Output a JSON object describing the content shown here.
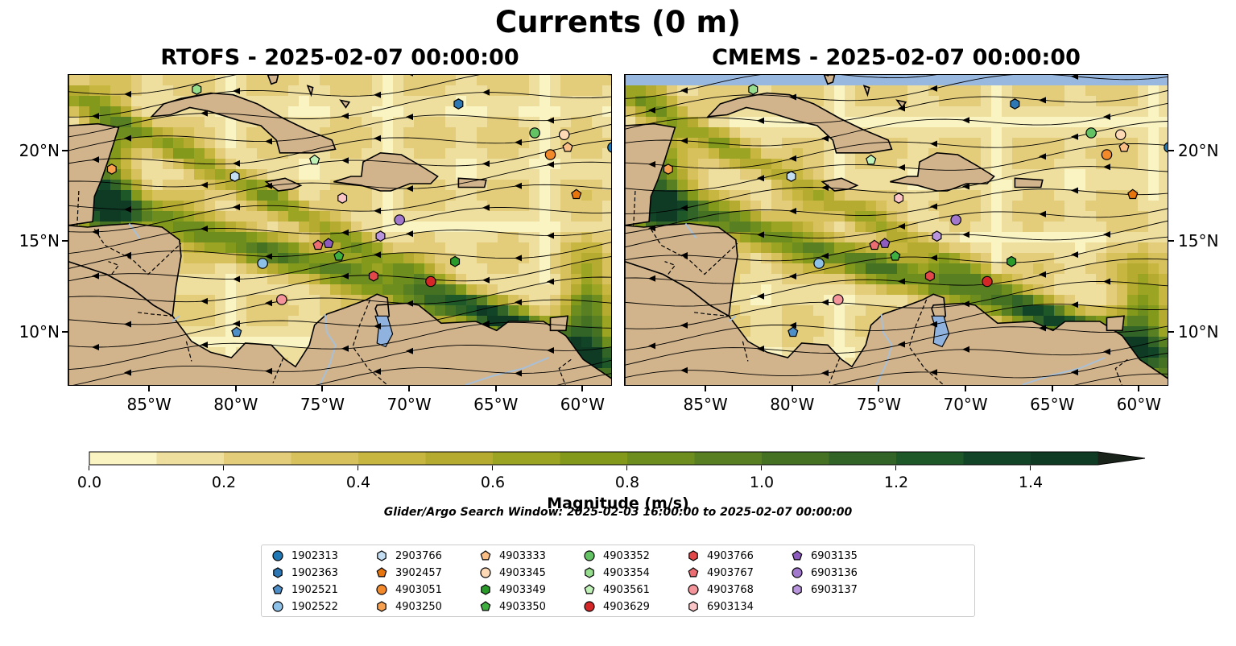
{
  "figure": {
    "suptitle": "Currents (0 m)",
    "panels": [
      {
        "title": "RTOFS - 2025-02-07 00:00:00"
      },
      {
        "title": "CMEMS - 2025-02-07 00:00:00"
      }
    ],
    "lon_ticks": [
      "85°W",
      "80°W",
      "75°W",
      "70°W",
      "65°W",
      "60°W"
    ],
    "lat_ticks": [
      "20°N",
      "15°N",
      "10°N"
    ],
    "extent": {
      "lon": [
        -89.7,
        -58.3
      ],
      "lat": [
        7.0,
        24.2
      ]
    },
    "colors": {
      "land": "#d2b48c",
      "missing": "#99b8e0",
      "lake": "#8fb3de",
      "rivers": "#a8bfd8"
    }
  },
  "colorbar": {
    "label": "Magnitude (m/s)",
    "ticks": [
      "0.0",
      "0.2",
      "0.4",
      "0.6",
      "0.8",
      "1.0",
      "1.2",
      "1.4"
    ],
    "range": [
      0.0,
      1.5
    ],
    "extend": "max",
    "colors": [
      "#faf3c2",
      "#efdf9e",
      "#e3cc7a",
      "#d7c15c",
      "#c7b740",
      "#b4ab30",
      "#9ba423",
      "#82991b",
      "#6d8d1e",
      "#587f22",
      "#457123",
      "#316426",
      "#1e5828",
      "#124528",
      "#0f3b25",
      "#132f20",
      "#192319"
    ]
  },
  "search_window": "Glider/Argo Search Window: 2025-02-03 16:00:00 to 2025-02-07 00:00:00",
  "legend": [
    {
      "label": "1902313",
      "marker": "circle",
      "color": "#1f77b4"
    },
    {
      "label": "1902363",
      "marker": "hexagon",
      "color": "#2d78b4"
    },
    {
      "label": "1902521",
      "marker": "pentagon",
      "color": "#4f8fc7"
    },
    {
      "label": "1902522",
      "marker": "circle",
      "color": "#8ec1e8"
    },
    {
      "label": "2903766",
      "marker": "hexagon",
      "color": "#c3def2"
    },
    {
      "label": "3902457",
      "marker": "pentagon",
      "color": "#e6750e"
    },
    {
      "label": "4903051",
      "marker": "circle",
      "color": "#f28a2b"
    },
    {
      "label": "4903250",
      "marker": "hexagon",
      "color": "#f7a150"
    },
    {
      "label": "4903333",
      "marker": "pentagon",
      "color": "#fbbf86"
    },
    {
      "label": "4903345",
      "marker": "circle",
      "color": "#fdd9b5"
    },
    {
      "label": "4903349",
      "marker": "hexagon",
      "color": "#2a9a2a"
    },
    {
      "label": "4903350",
      "marker": "pentagon",
      "color": "#3fb03f"
    },
    {
      "label": "4903352",
      "marker": "circle",
      "color": "#63c263"
    },
    {
      "label": "4903354",
      "marker": "hexagon",
      "color": "#96dd8e"
    },
    {
      "label": "4903561",
      "marker": "pentagon",
      "color": "#c0f2b8"
    },
    {
      "label": "4903629",
      "marker": "circle",
      "color": "#d62728"
    },
    {
      "label": "4903766",
      "marker": "hexagon",
      "color": "#e2474a"
    },
    {
      "label": "4903767",
      "marker": "pentagon",
      "color": "#ec6e73"
    },
    {
      "label": "4903768",
      "marker": "circle",
      "color": "#f3959a"
    },
    {
      "label": "6903134",
      "marker": "hexagon",
      "color": "#fbc4c6"
    },
    {
      "label": "6903135",
      "marker": "pentagon",
      "color": "#8e5cbf"
    },
    {
      "label": "6903136",
      "marker": "circle",
      "color": "#a178cc"
    },
    {
      "label": "6903137",
      "marker": "hexagon",
      "color": "#b995dd"
    }
  ],
  "floats": [
    {
      "id": "1902313",
      "lon": -58.3,
      "lat": 20.2
    },
    {
      "id": "1902363",
      "lon": -67.2,
      "lat": 22.6
    },
    {
      "id": "1902522",
      "lon": -78.5,
      "lat": 13.8
    },
    {
      "id": "2903766",
      "lon": -80.1,
      "lat": 18.6
    },
    {
      "id": "1902521",
      "lon": -80.0,
      "lat": 10.0
    },
    {
      "id": "3902457",
      "lon": -60.4,
      "lat": 17.6
    },
    {
      "id": "4903051",
      "lon": -61.9,
      "lat": 19.8
    },
    {
      "id": "4903250",
      "lon": -87.2,
      "lat": 19.0
    },
    {
      "id": "4903333",
      "lon": -60.9,
      "lat": 20.2
    },
    {
      "id": "4903345",
      "lon": -61.1,
      "lat": 20.9
    },
    {
      "id": "4903349",
      "lon": -67.4,
      "lat": 13.9
    },
    {
      "id": "4903350",
      "lon": -74.1,
      "lat": 14.2
    },
    {
      "id": "4903352",
      "lon": -62.8,
      "lat": 21.0
    },
    {
      "id": "4903354",
      "lon": -82.3,
      "lat": 23.4
    },
    {
      "id": "4903561",
      "lon": -75.5,
      "lat": 19.5
    },
    {
      "id": "4903629",
      "lon": -68.8,
      "lat": 12.8
    },
    {
      "id": "4903766",
      "lon": -72.1,
      "lat": 13.1
    },
    {
      "id": "4903767",
      "lon": -75.3,
      "lat": 14.8
    },
    {
      "id": "4903768",
      "lon": -77.4,
      "lat": 11.8
    },
    {
      "id": "6903134",
      "lon": -73.9,
      "lat": 17.4
    },
    {
      "id": "6903135",
      "lon": -74.7,
      "lat": 14.9
    },
    {
      "id": "6903136",
      "lon": -70.6,
      "lat": 16.2
    },
    {
      "id": "6903137",
      "lon": -71.7,
      "lat": 15.3
    }
  ]
}
